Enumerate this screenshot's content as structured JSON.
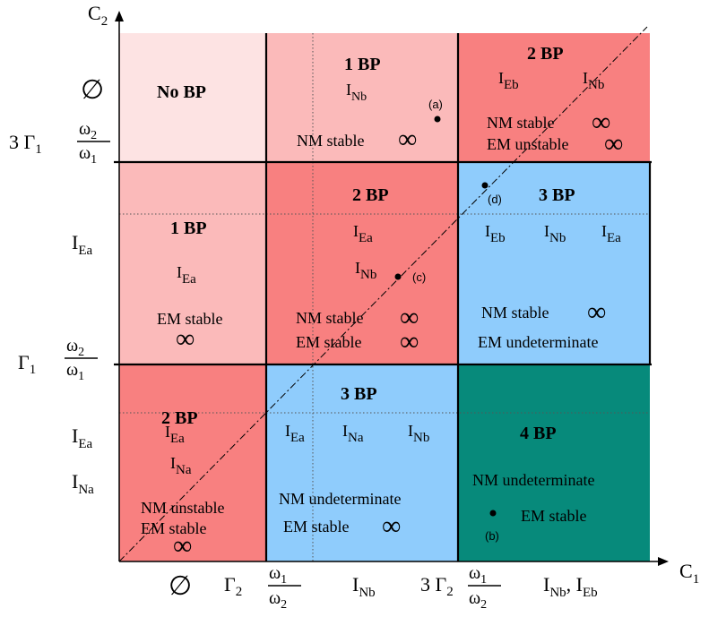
{
  "axes": {
    "c1_label": "C",
    "c1_sub": "1",
    "c2_label": "C",
    "c2_sub": "2"
  },
  "x_ticks": {
    "t0": "∅",
    "t1_coef": "Γ",
    "t1_sub": "2",
    "t1_num": "ω",
    "t1_num_sub": "1",
    "t1_den": "ω",
    "t1_den_sub": "2",
    "mid1": "I",
    "mid1_sub": "Nb",
    "t2_pre": "3 Γ",
    "t2_sub": "2",
    "t2_num": "ω",
    "t2_num_sub": "1",
    "t2_den": "ω",
    "t2_den_sub": "2",
    "mid2a": "I",
    "mid2a_sub": "Nb",
    "mid2_sep": ", I",
    "mid2b_sub": "Eb"
  },
  "y_ticks": {
    "t0": "∅",
    "t2_pre": "3 Γ",
    "t2_sub": "1",
    "t2_num": "ω",
    "t2_num_sub": "2",
    "t2_den": "ω",
    "t2_den_sub": "1",
    "mid1": "I",
    "mid1_sub": "Ea",
    "t1_coef": "Γ",
    "t1_sub": "1",
    "t1_num": "ω",
    "t1_num_sub": "2",
    "t1_den": "ω",
    "t1_den_sub": "1",
    "bottom_a": "I",
    "bottom_a_sub": "Ea",
    "bottom_b": "I",
    "bottom_b_sub": "Na"
  },
  "colors": {
    "very_light_pink": "#fde3e3",
    "light_pink": "#fbbaba",
    "red": "#f88080",
    "blue": "#8fccfc",
    "teal": "#078a7b"
  },
  "cells": {
    "top_left": {
      "title": "No BP"
    },
    "top_mid": {
      "title": "1 BP",
      "i1": "I",
      "i1_sub": "Nb",
      "stab": "NM stable",
      "inf": "∞"
    },
    "top_right": {
      "title": "2 BP",
      "i1": "I",
      "i1_sub": "Eb",
      "i2": "I",
      "i2_sub": "Nb",
      "stab1": "NM stable",
      "stab2": "EM unstable",
      "inf": "∞"
    },
    "mid_left": {
      "title": "1 BP",
      "i1": "I",
      "i1_sub": "Ea",
      "stab": "EM stable",
      "inf": "∞"
    },
    "mid_mid": {
      "title": "2 BP",
      "i1": "I",
      "i1_sub": "Ea",
      "i2": "I",
      "i2_sub": "Nb",
      "stab1": "NM stable",
      "stab2": "EM stable",
      "inf": "∞"
    },
    "mid_right": {
      "title": "3 BP",
      "i1": "I",
      "i1_sub": "Eb",
      "i2": "I",
      "i2_sub": "Nb",
      "i3": "I",
      "i3_sub": "Ea",
      "stab1": "NM stable",
      "stab2": "EM undeterminate",
      "inf": "∞"
    },
    "bot_left": {
      "title": "2 BP",
      "i1": "I",
      "i1_sub": "Ea",
      "i2": "I",
      "i2_sub": "Na",
      "stab1": "NM unstable",
      "stab2": "EM stable",
      "inf": "∞"
    },
    "bot_mid": {
      "title": "3 BP",
      "i1": "I",
      "i1_sub": "Ea",
      "i2": "I",
      "i2_sub": "Na",
      "i3": "I",
      "i3_sub": "Nb",
      "stab1": "NM undeterminate",
      "stab2": "EM stable",
      "inf": "∞"
    },
    "bot_right": {
      "title": "4 BP",
      "stab1": "NM undeterminate",
      "stab2": "EM stable"
    }
  },
  "points": {
    "a": "(a)",
    "b": "(b)",
    "c": "(c)",
    "d": "(d)"
  }
}
